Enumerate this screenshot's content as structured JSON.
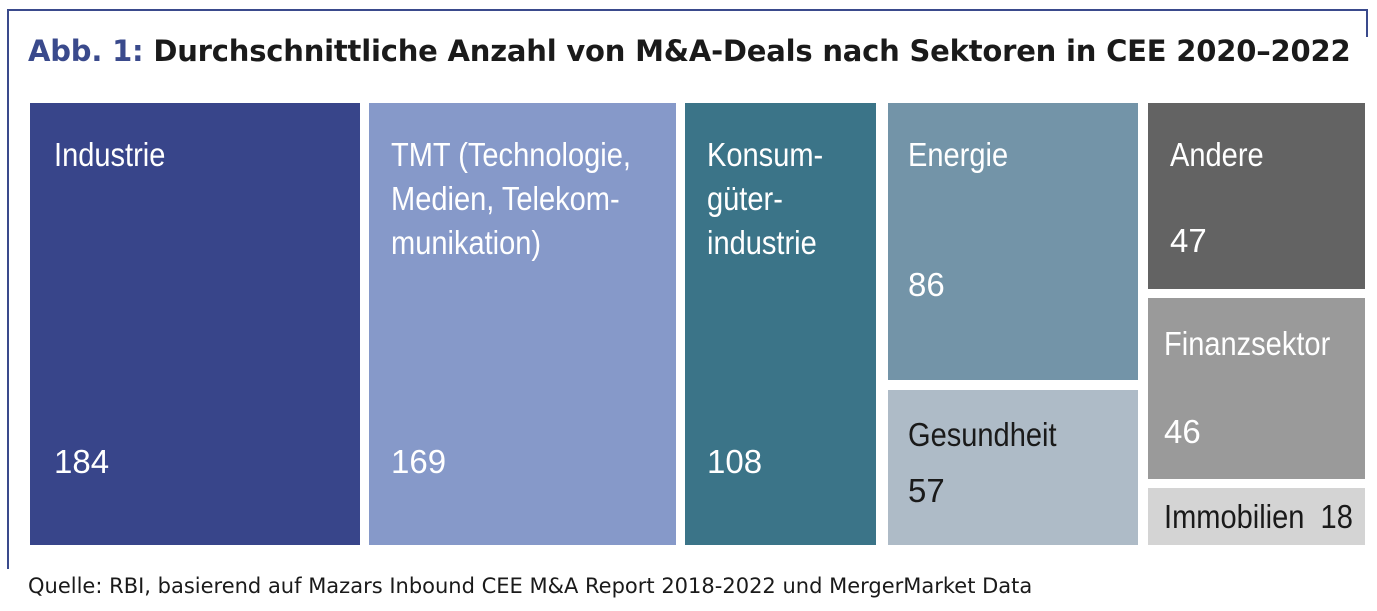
{
  "title_prefix": "Abb. 1:",
  "title_text": "Durchschnittliche Anzahl von M&A-Deals nach Sektoren in CEE 2020–2022",
  "source": "Quelle: RBI, basierend auf Mazars Inbound CEE M&A Report 2018-2022 und MergerMarket Data",
  "colors": {
    "industrie": "#38458a",
    "tmt": "#8699c9",
    "konsum": "#3b7488",
    "energie": "#7394a8",
    "gesundheit": "#aebbc7",
    "andere": "#636363",
    "finanz": "#9a9a9a",
    "immobilien": "#d4d4d4",
    "frame": "#3a4a8c"
  },
  "chart_data": {
    "type": "treemap",
    "title": "Abb. 1: Durchschnittliche Anzahl von M&A-Deals nach Sektoren in CEE 2020–2022",
    "items": [
      {
        "label": "Industrie",
        "value": 184
      },
      {
        "label": "TMT (Technologie, Medien, Telekommunikation)",
        "value": 169
      },
      {
        "label": "Konsumgüterindustrie",
        "value": 108
      },
      {
        "label": "Energie",
        "value": 86
      },
      {
        "label": "Gesundheit",
        "value": 57
      },
      {
        "label": "Andere",
        "value": 47
      },
      {
        "label": "Finanzsektor",
        "value": 46
      },
      {
        "label": "Immobilien",
        "value": 18
      }
    ]
  }
}
